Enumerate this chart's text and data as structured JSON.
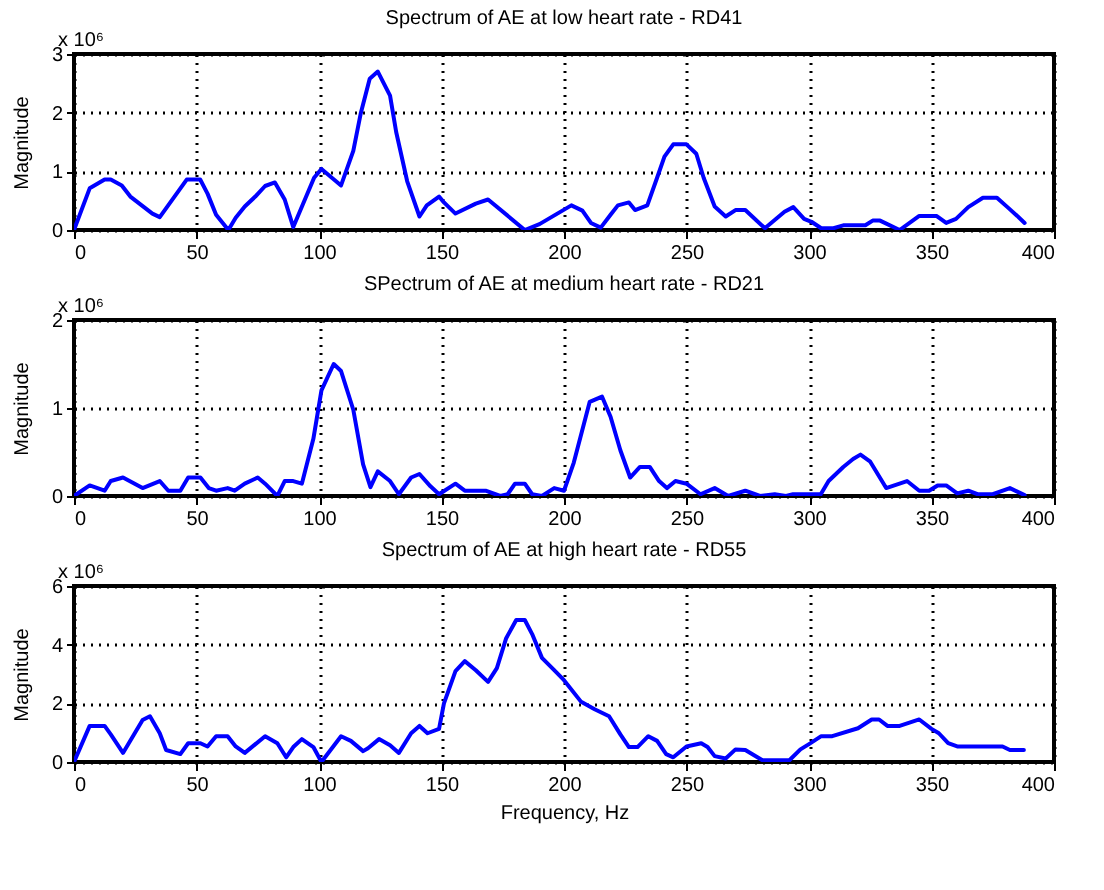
{
  "chart_data": [
    {
      "type": "line",
      "title": "Spectrum of AE at low heart rate - RD41",
      "ylabel": "Magnitude",
      "annotations": [
        "x 10⁶"
      ],
      "xlim": [
        0,
        400
      ],
      "xticks": [
        0,
        50,
        100,
        150,
        200,
        250,
        300,
        350,
        400
      ],
      "ylim": [
        0,
        3
      ],
      "yticks": [
        0,
        1,
        2,
        3
      ],
      "grid": true,
      "x": [
        0,
        6.4,
        12.5,
        15,
        19.5,
        23,
        32,
        35,
        46,
        51.5,
        54.5,
        58,
        63,
        66,
        69.7,
        74,
        78,
        82,
        86,
        89.5,
        98,
        101,
        109,
        114,
        117,
        120.7,
        124,
        129,
        131.5,
        136,
        141,
        144,
        149,
        151,
        155.7,
        164,
        169,
        184,
        190,
        203,
        207.5,
        211,
        215,
        219,
        222,
        226.5,
        229,
        234,
        238,
        241,
        244.6,
        250,
        254,
        257,
        261.5,
        266,
        270,
        274,
        282,
        290,
        293.6,
        298,
        301,
        305,
        310,
        314,
        323,
        326,
        329,
        337,
        345,
        352,
        356,
        360,
        365,
        371,
        376.7,
        381,
        385,
        388
      ],
      "series": [
        {
          "color": "#0000ff",
          "values": [
            0,
            0.71,
            0.86,
            0.86,
            0.76,
            0.57,
            0.28,
            0.22,
            0.86,
            0.86,
            0.62,
            0.26,
            0,
            0.21,
            0.4,
            0.57,
            0.75,
            0.81,
            0.52,
            0.05,
            0.89,
            1.04,
            0.76,
            1.35,
            1.98,
            2.58,
            2.7,
            2.29,
            1.67,
            0.83,
            0.23,
            0.42,
            0.57,
            0.47,
            0.28,
            0.45,
            0.52,
            0,
            0.1,
            0.42,
            0.33,
            0.12,
            0.04,
            0.26,
            0.42,
            0.47,
            0.34,
            0.42,
            0.89,
            1.25,
            1.46,
            1.46,
            1.3,
            0.89,
            0.4,
            0.23,
            0.34,
            0.34,
            0.03,
            0.31,
            0.39,
            0.19,
            0.14,
            0.03,
            0.03,
            0.08,
            0.08,
            0.16,
            0.16,
            0,
            0.24,
            0.24,
            0.12,
            0.19,
            0.39,
            0.55,
            0.55,
            0.39,
            0.24,
            0.12
          ]
        }
      ]
    },
    {
      "type": "line",
      "title": "SPectrum of AE at medium heart rate - RD21",
      "ylabel": "Magnitude",
      "annotations": [
        "x 10⁶"
      ],
      "xlim": [
        0,
        400
      ],
      "xticks": [
        0,
        50,
        100,
        150,
        200,
        250,
        300,
        350,
        400
      ],
      "ylim": [
        0,
        2
      ],
      "yticks": [
        0,
        1,
        2
      ],
      "grid": true,
      "x": [
        0,
        6.4,
        12.5,
        15,
        20,
        28,
        35,
        38.5,
        43.4,
        46.6,
        51.6,
        55,
        58,
        62.7,
        65.6,
        69.7,
        75,
        78,
        83,
        86,
        89.5,
        93,
        97.7,
        101,
        106,
        109,
        114,
        118,
        121,
        124,
        129,
        132.6,
        137.6,
        141,
        145.5,
        149,
        155.7,
        159.5,
        168,
        174,
        177,
        180,
        184,
        187,
        191,
        196,
        200,
        204,
        210.5,
        215.5,
        219,
        223,
        227,
        231,
        235,
        238.8,
        242,
        245.5,
        250,
        255.7,
        261.5,
        267,
        274,
        280,
        286,
        290.6,
        293.5,
        299,
        304.8,
        308,
        314,
        318,
        321,
        325,
        331.5,
        340,
        345,
        349,
        352.5,
        356,
        360.5,
        365,
        368.8,
        375,
        382,
        388
      ],
      "series": [
        {
          "color": "#0000ff",
          "values": [
            0,
            0.12,
            0.06,
            0.17,
            0.21,
            0.09,
            0.17,
            0.06,
            0.06,
            0.21,
            0.21,
            0.09,
            0.06,
            0.09,
            0.06,
            0.14,
            0.21,
            0.14,
            0,
            0.17,
            0.17,
            0.14,
            0.65,
            1.2,
            1.5,
            1.42,
            0.98,
            0.36,
            0.1,
            0.28,
            0.17,
            0.02,
            0.21,
            0.25,
            0.11,
            0.02,
            0.14,
            0.06,
            0.06,
            0,
            0.02,
            0.14,
            0.14,
            0.02,
            0,
            0.09,
            0.06,
            0.38,
            1.07,
            1.13,
            0.9,
            0.52,
            0.21,
            0.33,
            0.33,
            0.17,
            0.09,
            0.17,
            0.14,
            0.02,
            0.09,
            0,
            0.06,
            0,
            0.02,
            0,
            0.02,
            0.02,
            0.02,
            0.17,
            0.33,
            0.42,
            0.47,
            0.39,
            0.09,
            0.17,
            0.06,
            0.06,
            0.12,
            0.12,
            0.03,
            0.06,
            0.02,
            0.02,
            0.09,
            0.01
          ]
        }
      ]
    },
    {
      "type": "line",
      "title": "Spectrum of AE at high heart rate - RD55",
      "xlabel": "Frequency, Hz",
      "ylabel": "Magnitude",
      "annotations": [
        "x 10⁶"
      ],
      "xlim": [
        0,
        400
      ],
      "xticks": [
        0,
        50,
        100,
        150,
        200,
        250,
        300,
        350,
        400
      ],
      "ylim": [
        0,
        6
      ],
      "yticks": [
        0,
        2,
        4,
        6
      ],
      "grid": true,
      "x": [
        0,
        6.4,
        12.5,
        15,
        20,
        28,
        31,
        35,
        37.6,
        43.4,
        46.6,
        51.6,
        54.5,
        58,
        62.7,
        66,
        69.7,
        78,
        83,
        86.6,
        89.5,
        93,
        97.7,
        101,
        109,
        113,
        118,
        120,
        124.5,
        129,
        132.6,
        137.6,
        141,
        144.3,
        149,
        151,
        155.7,
        159.5,
        164,
        169,
        172.6,
        176.4,
        180.5,
        184,
        187,
        191,
        196,
        200,
        207,
        212.5,
        218.4,
        223,
        226.5,
        230,
        234.4,
        238,
        241.7,
        244.6,
        250,
        256,
        258.6,
        261.5,
        266,
        270,
        274,
        281,
        286,
        292,
        296.5,
        300,
        305,
        309.5,
        320,
        325.6,
        328.6,
        332,
        337,
        345,
        350,
        353,
        356.8,
        360.5,
        379,
        382,
        387.7
      ],
      "series": [
        {
          "color": "#0000ff",
          "values": [
            0,
            1.23,
            1.23,
            0.94,
            0.31,
            1.43,
            1.56,
            0.98,
            0.41,
            0.27,
            0.64,
            0.64,
            0.53,
            0.88,
            0.88,
            0.53,
            0.31,
            0.88,
            0.64,
            0.16,
            0.51,
            0.78,
            0.51,
            0,
            0.88,
            0.72,
            0.37,
            0.47,
            0.78,
            0.57,
            0.31,
            0.98,
            1.23,
            0.98,
            1.13,
            2.0,
            3.1,
            3.44,
            3.13,
            2.73,
            3.2,
            4.22,
            4.84,
            4.84,
            4.36,
            3.55,
            3.13,
            2.79,
            2.05,
            1.8,
            1.56,
            0.94,
            0.51,
            0.51,
            0.88,
            0.72,
            0.27,
            0.16,
            0.53,
            0.64,
            0.51,
            0.2,
            0.12,
            0.43,
            0.41,
            0.06,
            0.06,
            0.06,
            0.43,
            0.61,
            0.88,
            0.88,
            1.15,
            1.45,
            1.45,
            1.23,
            1.23,
            1.45,
            1.13,
            0.98,
            0.64,
            0.53,
            0.53,
            0.41,
            0.41
          ]
        }
      ]
    }
  ]
}
